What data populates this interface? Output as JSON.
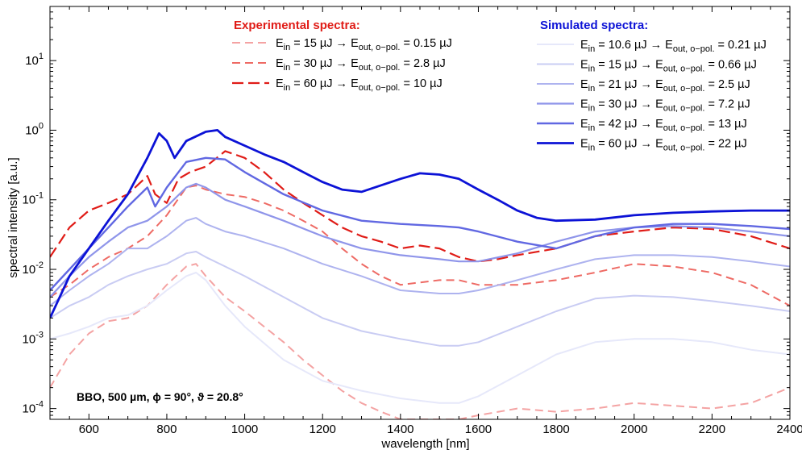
{
  "chart_data": {
    "type": "line",
    "xlabel": "wavelength [nm]",
    "ylabel": "spectral intensity [a.u.]",
    "xlim": [
      500,
      2400
    ],
    "ylim": [
      7e-05,
      60
    ],
    "yscale": "log",
    "x_ticks": [
      "600",
      "800",
      "1000",
      "1200",
      "1400",
      "1600",
      "1800",
      "2000",
      "2200",
      "2400"
    ],
    "y_ticks": [
      {
        "base": "10",
        "exp": "1",
        "v": 10
      },
      {
        "base": "10",
        "exp": "0",
        "v": 1
      },
      {
        "base": "10",
        "exp": "-1",
        "v": 0.1
      },
      {
        "base": "10",
        "exp": "-2",
        "v": 0.01
      },
      {
        "base": "10",
        "exp": "-3",
        "v": 0.001
      },
      {
        "base": "10",
        "exp": "-4",
        "v": 0.0001
      }
    ],
    "annotation": "BBO, 500 µm, ϕ = 90°, ϑ = 20.8°",
    "legend_experimental": {
      "title": "Experimental spectra:",
      "entries": [
        {
          "ein": "15 µJ",
          "eout": "0.15 µJ"
        },
        {
          "ein": "30 µJ",
          "eout": "2.8 µJ"
        },
        {
          "ein": "60 µJ",
          "eout": "10 µJ"
        }
      ]
    },
    "legend_simulated": {
      "title": "Simulated spectra:",
      "entries": [
        {
          "ein": "10.6 µJ",
          "eout": "0.21 µJ"
        },
        {
          "ein": "15 µJ",
          "eout": "0.66 µJ"
        },
        {
          "ein": "21 µJ",
          "eout": "2.5 µJ"
        },
        {
          "ein": "30 µJ",
          "eout": "7.2 µJ"
        },
        {
          "ein": "42 µJ",
          "eout": "13 µJ"
        },
        {
          "ein": "60 µJ",
          "eout": "22 µJ"
        }
      ]
    },
    "legend_text": {
      "e": "E",
      "in": "in",
      "out": "out, o−pol.",
      "eq": " = ",
      "arrow": " → "
    },
    "series": [
      {
        "kind": "experimental",
        "color": "#f4a3a3",
        "dash": "10,6",
        "width": 2,
        "x": [
          500,
          550,
          600,
          650,
          700,
          750,
          800,
          850,
          875,
          900,
          950,
          1000,
          1050,
          1100,
          1150,
          1200,
          1250,
          1300,
          1350,
          1400,
          1500,
          1550,
          1600,
          1700,
          1800,
          1900,
          2000,
          2100,
          2200,
          2300,
          2400
        ],
        "y": [
          0.0002,
          0.0006,
          0.0012,
          0.0018,
          0.002,
          0.003,
          0.006,
          0.011,
          0.012,
          0.008,
          0.004,
          0.0025,
          0.0015,
          0.0009,
          0.0005,
          0.0003,
          0.00018,
          0.00012,
          9e-05,
          7e-05,
          7e-05,
          7e-05,
          8e-05,
          0.0001,
          9e-05,
          0.0001,
          0.00012,
          0.00011,
          0.0001,
          0.00012,
          0.0002
        ]
      },
      {
        "kind": "experimental",
        "color": "#ee6a64",
        "dash": "10,6",
        "width": 2,
        "x": [
          500,
          550,
          600,
          650,
          700,
          750,
          800,
          850,
          875,
          900,
          950,
          1000,
          1050,
          1100,
          1150,
          1200,
          1250,
          1300,
          1350,
          1400,
          1500,
          1550,
          1600,
          1700,
          1800,
          1900,
          2000,
          2100,
          2200,
          2300,
          2400
        ],
        "y": [
          0.004,
          0.006,
          0.01,
          0.015,
          0.02,
          0.03,
          0.06,
          0.15,
          0.16,
          0.14,
          0.12,
          0.11,
          0.09,
          0.07,
          0.05,
          0.035,
          0.02,
          0.012,
          0.008,
          0.006,
          0.007,
          0.007,
          0.006,
          0.006,
          0.007,
          0.009,
          0.012,
          0.011,
          0.009,
          0.006,
          0.003
        ]
      },
      {
        "kind": "experimental",
        "color": "#e01c17",
        "dash": "14,6",
        "width": 2.2,
        "x": [
          500,
          550,
          600,
          650,
          700,
          750,
          770,
          800,
          830,
          860,
          900,
          950,
          1000,
          1050,
          1100,
          1150,
          1200,
          1250,
          1300,
          1350,
          1400,
          1450,
          1500,
          1550,
          1600,
          1650,
          1700,
          1800,
          1900,
          2000,
          2100,
          2200,
          2300,
          2400
        ],
        "y": [
          0.015,
          0.04,
          0.07,
          0.09,
          0.12,
          0.22,
          0.12,
          0.09,
          0.2,
          0.25,
          0.3,
          0.5,
          0.4,
          0.25,
          0.14,
          0.09,
          0.06,
          0.04,
          0.03,
          0.025,
          0.02,
          0.022,
          0.02,
          0.015,
          0.013,
          0.014,
          0.016,
          0.02,
          0.03,
          0.035,
          0.04,
          0.038,
          0.03,
          0.02
        ]
      },
      {
        "kind": "simulated",
        "color": "#e6e8fa",
        "width": 2,
        "x": [
          500,
          550,
          600,
          650,
          700,
          750,
          800,
          850,
          875,
          900,
          950,
          1000,
          1100,
          1200,
          1300,
          1400,
          1500,
          1550,
          1600,
          1700,
          1800,
          1900,
          2000,
          2100,
          2200,
          2300,
          2400
        ],
        "y": [
          0.001,
          0.0012,
          0.0015,
          0.002,
          0.0022,
          0.003,
          0.005,
          0.008,
          0.009,
          0.007,
          0.003,
          0.0015,
          0.0005,
          0.00025,
          0.00018,
          0.00014,
          0.00012,
          0.00012,
          0.00015,
          0.0003,
          0.0006,
          0.0009,
          0.001,
          0.001,
          0.0009,
          0.0007,
          0.0006
        ]
      },
      {
        "kind": "simulated",
        "color": "#c9ccf3",
        "width": 2,
        "x": [
          500,
          550,
          600,
          650,
          700,
          750,
          800,
          850,
          875,
          900,
          950,
          1000,
          1100,
          1200,
          1300,
          1400,
          1500,
          1550,
          1600,
          1700,
          1800,
          1900,
          2000,
          2100,
          2200,
          2300,
          2400
        ],
        "y": [
          0.002,
          0.003,
          0.004,
          0.006,
          0.008,
          0.01,
          0.012,
          0.017,
          0.018,
          0.015,
          0.011,
          0.008,
          0.004,
          0.002,
          0.0013,
          0.001,
          0.0008,
          0.0008,
          0.0009,
          0.0015,
          0.0025,
          0.0038,
          0.0042,
          0.004,
          0.0035,
          0.003,
          0.0025
        ]
      },
      {
        "kind": "simulated",
        "color": "#aeb3ef",
        "width": 2,
        "x": [
          500,
          550,
          600,
          650,
          700,
          750,
          800,
          850,
          875,
          900,
          950,
          1000,
          1100,
          1200,
          1300,
          1400,
          1500,
          1550,
          1600,
          1700,
          1800,
          1900,
          2000,
          2100,
          2200,
          2300,
          2400
        ],
        "y": [
          0.003,
          0.005,
          0.008,
          0.012,
          0.02,
          0.02,
          0.03,
          0.05,
          0.055,
          0.045,
          0.035,
          0.03,
          0.02,
          0.012,
          0.008,
          0.005,
          0.0045,
          0.0045,
          0.005,
          0.007,
          0.01,
          0.014,
          0.016,
          0.016,
          0.015,
          0.013,
          0.011
        ]
      },
      {
        "kind": "simulated",
        "color": "#8f95ea",
        "width": 2.2,
        "x": [
          500,
          550,
          600,
          650,
          700,
          750,
          800,
          850,
          875,
          900,
          950,
          1000,
          1100,
          1200,
          1300,
          1400,
          1500,
          1550,
          1600,
          1700,
          1800,
          1900,
          2000,
          2100,
          2200,
          2300,
          2400
        ],
        "y": [
          0.004,
          0.008,
          0.015,
          0.025,
          0.04,
          0.05,
          0.08,
          0.15,
          0.17,
          0.15,
          0.1,
          0.08,
          0.05,
          0.03,
          0.02,
          0.016,
          0.014,
          0.013,
          0.013,
          0.017,
          0.025,
          0.035,
          0.04,
          0.042,
          0.04,
          0.035,
          0.03
        ]
      },
      {
        "kind": "simulated",
        "color": "#6168e2",
        "width": 2.4,
        "x": [
          500,
          550,
          600,
          650,
          700,
          750,
          770,
          800,
          850,
          900,
          950,
          1000,
          1100,
          1200,
          1300,
          1400,
          1500,
          1550,
          1600,
          1700,
          1800,
          1900,
          2000,
          2100,
          2200,
          2300,
          2400
        ],
        "y": [
          0.005,
          0.01,
          0.02,
          0.04,
          0.08,
          0.15,
          0.08,
          0.15,
          0.35,
          0.4,
          0.38,
          0.25,
          0.12,
          0.07,
          0.05,
          0.045,
          0.042,
          0.04,
          0.035,
          0.025,
          0.02,
          0.03,
          0.04,
          0.045,
          0.045,
          0.042,
          0.038
        ]
      },
      {
        "kind": "simulated",
        "color": "#0c12d6",
        "width": 2.8,
        "x": [
          500,
          550,
          600,
          650,
          700,
          750,
          780,
          800,
          820,
          850,
          900,
          930,
          950,
          1000,
          1050,
          1100,
          1150,
          1200,
          1250,
          1300,
          1400,
          1450,
          1500,
          1550,
          1600,
          1650,
          1700,
          1750,
          1800,
          1900,
          2000,
          2100,
          2200,
          2300,
          2400
        ],
        "y": [
          0.002,
          0.008,
          0.02,
          0.05,
          0.12,
          0.4,
          0.9,
          0.7,
          0.4,
          0.7,
          0.95,
          1.0,
          0.8,
          0.6,
          0.45,
          0.35,
          0.25,
          0.18,
          0.14,
          0.13,
          0.2,
          0.24,
          0.23,
          0.2,
          0.14,
          0.1,
          0.07,
          0.055,
          0.05,
          0.052,
          0.06,
          0.065,
          0.068,
          0.07,
          0.07
        ]
      }
    ]
  }
}
